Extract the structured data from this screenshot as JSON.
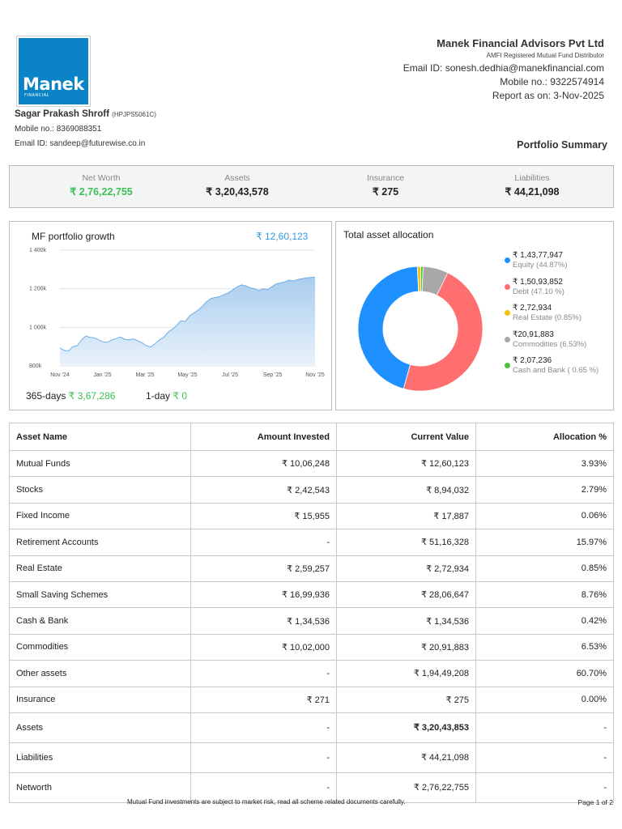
{
  "logo": {
    "text": "Manek",
    "sub": "FINANCIAL"
  },
  "firm": {
    "name": "Manek Financial Advisors Pvt Ltd",
    "subtitle": "AMFI Registered Mutual Fund Distributor",
    "email": "Email ID: sonesh.dedhia@manekfinancial.com",
    "mobile": "Mobile no.: 9322574914",
    "report_date": "Report as on: 3-Nov-2025"
  },
  "client": {
    "name": "Sagar Prakash Shroff",
    "pan": "(HPJPS5061C)",
    "mobile": "Mobile no.: 8369088351",
    "email": "Email ID: sandeep@futurewise.co.in"
  },
  "section_title": "Portfolio Summary",
  "summary": {
    "net_worth_label": "Net Worth",
    "net_worth": "₹ 2,76,22,755",
    "assets_label": "Assets",
    "assets": "₹ 3,20,43,578",
    "insurance_label": "Insurance",
    "insurance": "₹ 275",
    "liabilities_label": "Liabilities",
    "liabilities": "₹ 44,21,098"
  },
  "growth": {
    "title": "MF portfolio growth",
    "value": "₹ 12,60,123",
    "stat_365_label": "365-days",
    "stat_365_value": "₹ 3,67,286",
    "stat_1d_label": "1-day",
    "stat_1d_value": "₹ 0"
  },
  "allocation": {
    "title": "Total asset allocation"
  },
  "colors": {
    "green": "#3bbf56",
    "blue_accent": "#2f9be0",
    "area_fill": "#a9cdee",
    "area_line": "#6aaee8"
  },
  "chart_data": [
    {
      "type": "area",
      "title": "MF portfolio growth",
      "xlabel": "",
      "ylabel": "",
      "x_ticks": [
        "Nov '24",
        "Jan '25",
        "Mar '25",
        "May '25",
        "Jul '25",
        "Sep '25",
        "Nov '25"
      ],
      "y_ticks": [
        "800k",
        "1 000k",
        "1 200k",
        "1 400k"
      ],
      "ylim": [
        800000,
        1400000
      ],
      "grid": true,
      "series": [
        {
          "values": [
            893000,
            880000,
            878000,
            900000,
            905000,
            935000,
            955000,
            948000,
            945000,
            935000,
            925000,
            922000,
            935000,
            942000,
            950000,
            938000,
            935000,
            940000,
            930000,
            920000,
            905000,
            898000,
            915000,
            935000,
            948000,
            975000,
            990000,
            1010000,
            1035000,
            1030000,
            1060000,
            1075000,
            1090000,
            1110000,
            1135000,
            1150000,
            1155000,
            1160000,
            1170000,
            1180000,
            1195000,
            1210000,
            1220000,
            1215000,
            1205000,
            1200000,
            1190000,
            1200000,
            1195000,
            1210000,
            1225000,
            1230000,
            1235000,
            1245000,
            1240000,
            1248000,
            1252000,
            1256000,
            1258000,
            1260123
          ]
        }
      ]
    },
    {
      "type": "pie",
      "title": "Total asset allocation",
      "slices": [
        {
          "value": "₹ 1,43,77,947",
          "label": "Equity (44.87%)",
          "pct": 44.87,
          "color": "#1e90ff"
        },
        {
          "value": "₹ 1,50,93,852",
          "label": "Debt (47.10 %)",
          "pct": 47.1,
          "color": "#ff6f6f"
        },
        {
          "value": "₹ 2,72,934",
          "label": "Real Estate (0.85%)",
          "pct": 0.85,
          "color": "#f4c20d"
        },
        {
          "value": "₹20,91,883",
          "label": "Commodities (6.53%)",
          "pct": 6.53,
          "color": "#a8a8a8"
        },
        {
          "value": "₹ 2,07,236",
          "label": "Cash and Bank ( 0.65 %)",
          "pct": 0.65,
          "color": "#4cc23d"
        }
      ]
    }
  ],
  "table": {
    "headers": [
      "Asset Name",
      "Amount Invested",
      "Current Value",
      "Allocation %"
    ],
    "rows": [
      [
        "Mutual Funds",
        "₹ 10,06,248",
        "₹ 12,60,123",
        "3.93%"
      ],
      [
        "Stocks",
        "₹ 2,42,543",
        "₹ 8,94,032",
        "2.79%"
      ],
      [
        "Fixed Income",
        "₹ 15,955",
        "₹ 17,887",
        "0.06%"
      ],
      [
        "Retirement Accounts",
        "-",
        "₹ 51,16,328",
        "15.97%"
      ],
      [
        "Real Estate",
        "₹ 2,59,257",
        "₹ 2,72,934",
        "0.85%"
      ],
      [
        "Small Saving Schemes",
        "₹ 16,99,936",
        "₹ 28,06,647",
        "8.76%"
      ],
      [
        "Cash & Bank",
        "₹ 1,34,536",
        "₹ 1,34,536",
        "0.42%"
      ],
      [
        "Commodities",
        "₹ 10,02,000",
        "₹ 20,91,883",
        "6.53%"
      ],
      [
        "Other assets",
        "-",
        "₹ 1,94,49,208",
        "60.70%"
      ],
      [
        "Insurance",
        "₹ 271",
        "₹ 275",
        "0.00%"
      ],
      [
        "Assets",
        "-",
        "₹ 3,20,43,853",
        "-"
      ],
      [
        "Liabilities",
        "-",
        "₹ 44,21,098",
        "-"
      ],
      [
        "Networth",
        "-",
        "₹ 2,76,22,755",
        "-"
      ]
    ]
  },
  "footer": {
    "disclaimer": "Mutual Fund investments are subject to market risk, read all scheme related documents carefully.",
    "page": "Page 1 of 2"
  }
}
